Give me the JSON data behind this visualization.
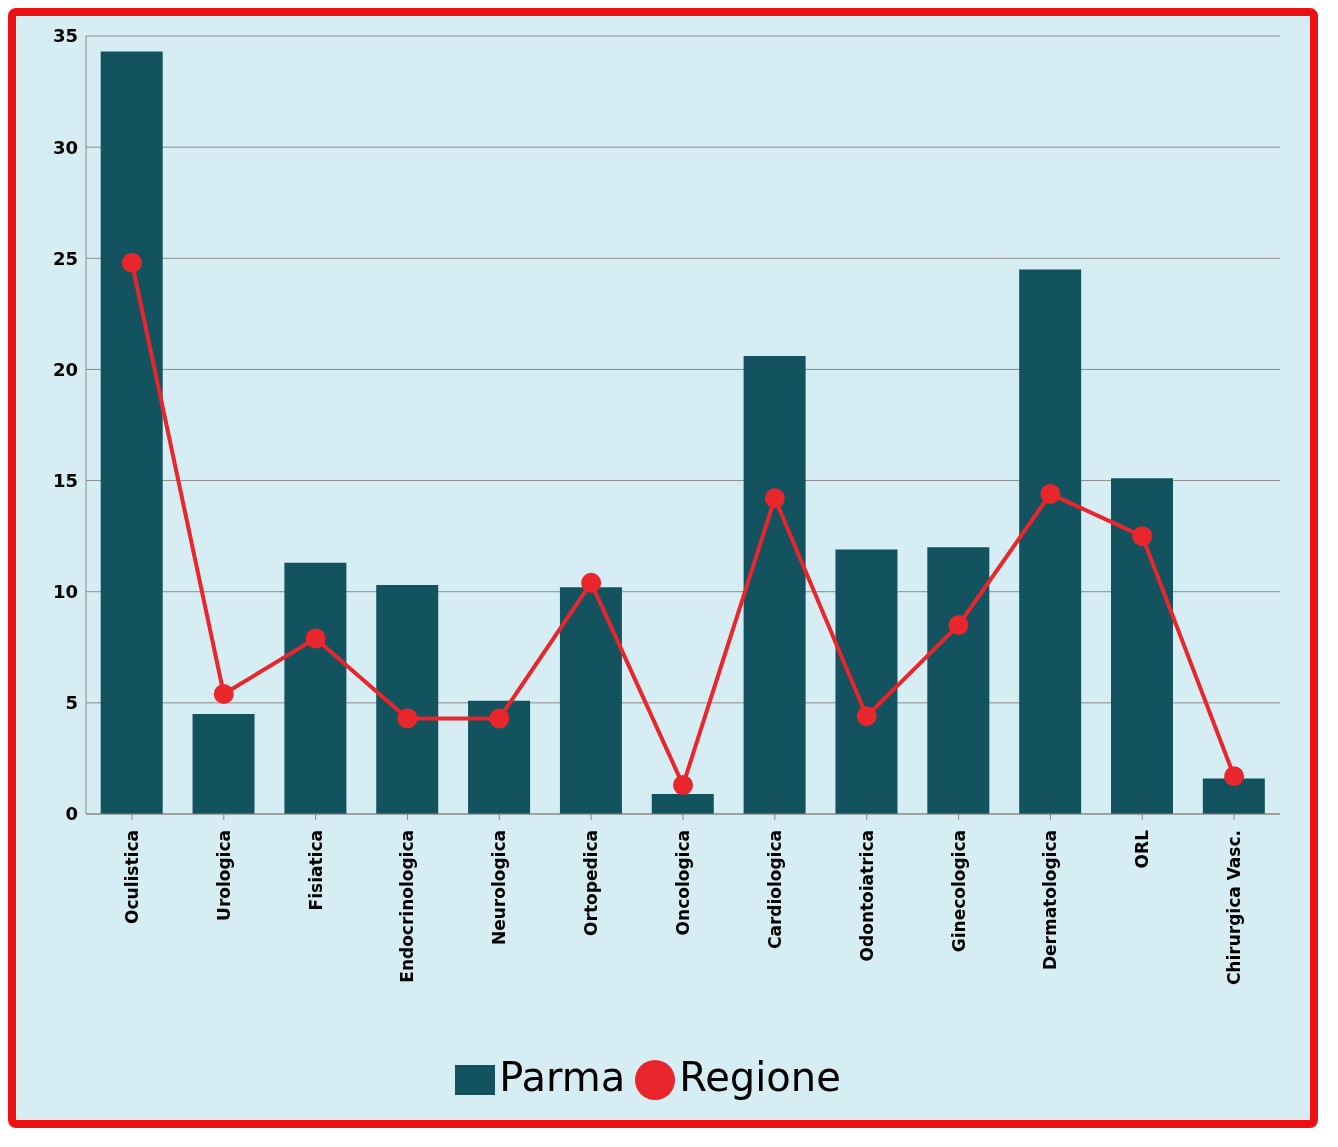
{
  "chart_data": {
    "type": "bar",
    "categories": [
      "Oculistica",
      "Urologica",
      "Fisiatica",
      "Endocrinologica",
      "Neurologica",
      "Ortopedica",
      "Oncologica",
      "Cardiologica",
      "Odontoiatrica",
      "Ginecologica",
      "Dermatologica",
      "ORL",
      "Chirurgica Vasc."
    ],
    "series": [
      {
        "name": "Parma",
        "color": "#12535f",
        "values": [
          34.3,
          4.5,
          11.3,
          10.3,
          5.1,
          10.2,
          0.9,
          20.6,
          11.9,
          12.0,
          24.5,
          15.1,
          1.6
        ]
      },
      {
        "name": "Regione",
        "type": "line",
        "color": "#e8262b",
        "marker": "circle",
        "values": [
          24.8,
          5.4,
          7.9,
          4.3,
          4.3,
          10.4,
          1.3,
          14.2,
          4.4,
          8.5,
          14.4,
          12.5,
          1.7
        ]
      }
    ],
    "ylim": [
      0,
      35
    ],
    "yticks": [
      0,
      5,
      10,
      15,
      20,
      25,
      30,
      35
    ],
    "grid": "y",
    "legend": "bottom"
  }
}
